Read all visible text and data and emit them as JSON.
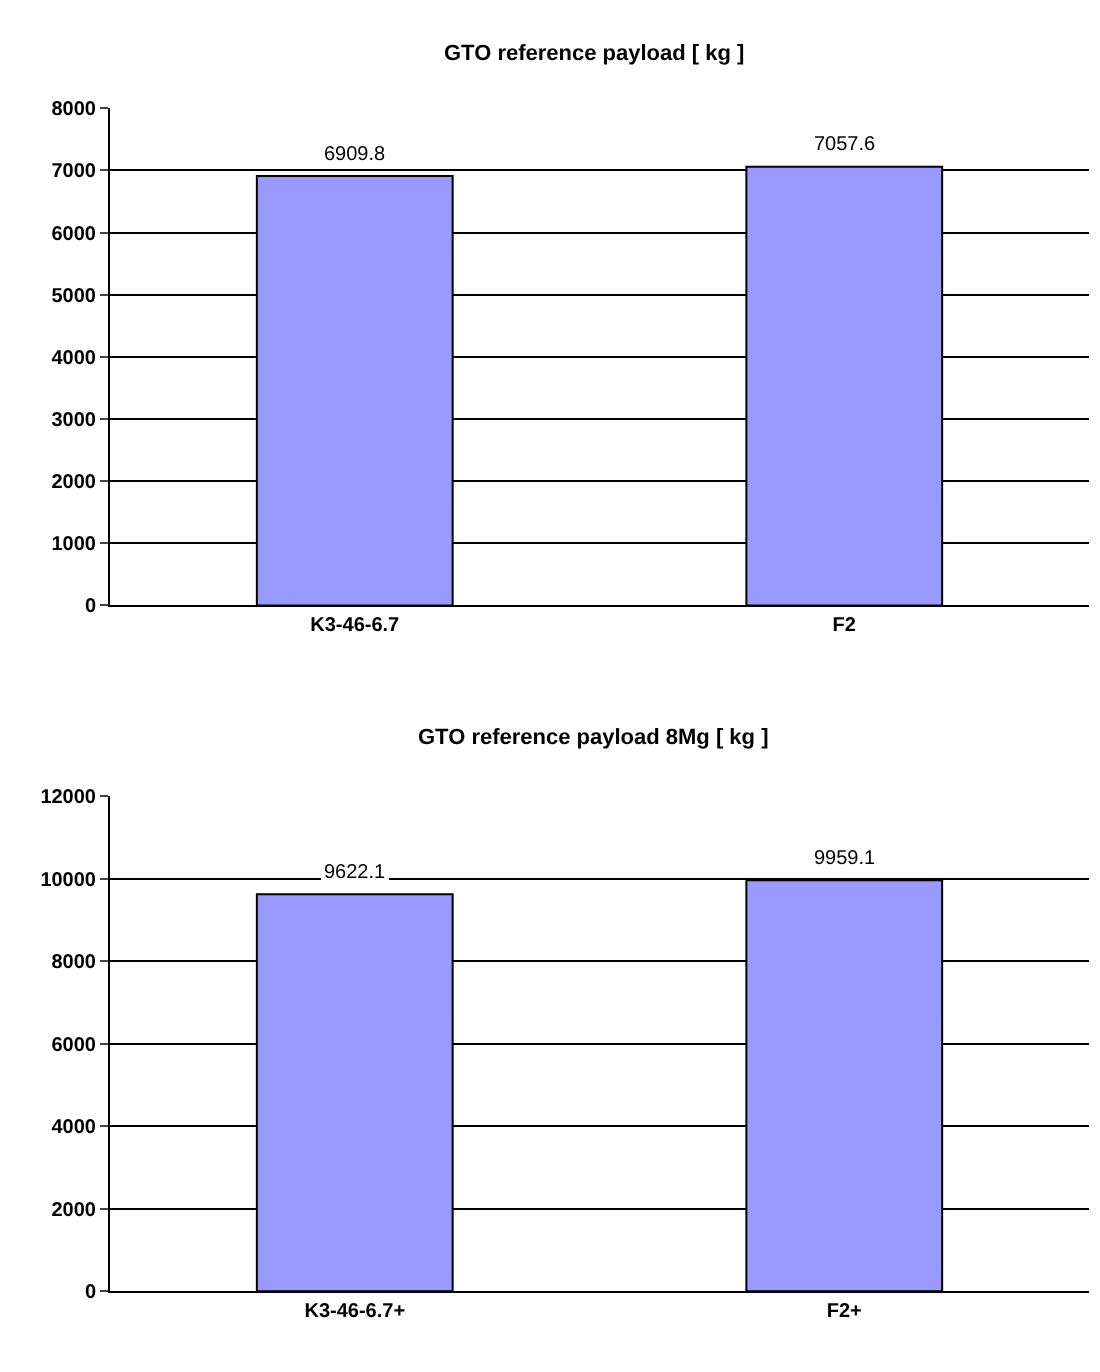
{
  "chart_data": [
    {
      "type": "bar",
      "title": "GTO reference payload [ kg ]",
      "categories": [
        "K3-46-6.7",
        "F2"
      ],
      "values": [
        6909.8,
        7057.6
      ],
      "color": "#9999ff",
      "ylim": [
        0,
        8000
      ],
      "yticks": [
        0,
        1000,
        2000,
        3000,
        4000,
        5000,
        6000,
        7000,
        8000
      ],
      "grid": "y",
      "data_labels": true
    },
    {
      "type": "bar",
      "title": "GTO reference payload 8Mg [ kg ]",
      "categories": [
        "K3-46-6.7+",
        "F2+"
      ],
      "values": [
        9622.1,
        9959.1
      ],
      "color": "#9999ff",
      "ylim": [
        0,
        12000
      ],
      "yticks": [
        0,
        2000,
        4000,
        6000,
        8000,
        10000,
        12000
      ],
      "grid": "y",
      "data_labels": true
    }
  ]
}
